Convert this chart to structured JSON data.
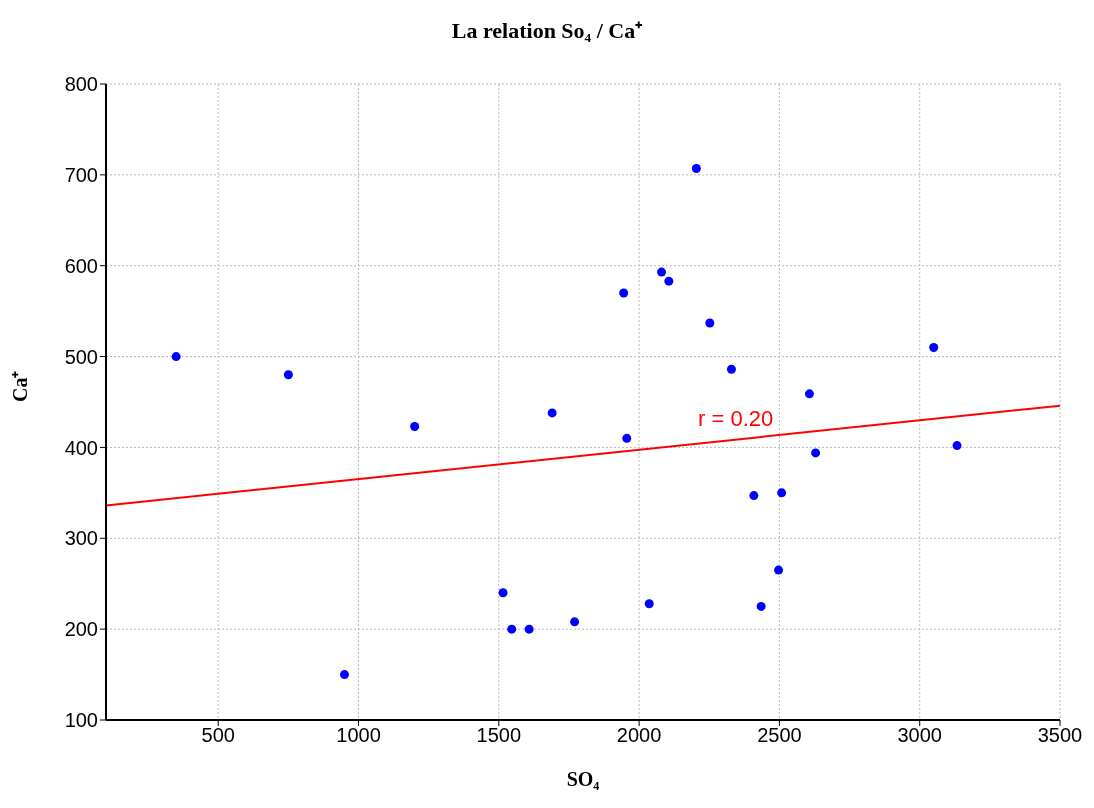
{
  "chart_data": {
    "type": "scatter",
    "title": "La relation So₄ / Ca⁺",
    "xlabel": "SO₄",
    "ylabel": "Ca⁺",
    "xlim": [
      100,
      3500
    ],
    "xticks": [
      500,
      1000,
      1500,
      2000,
      2500,
      3000,
      3500
    ],
    "ylim": [
      100,
      800
    ],
    "yticks": [
      100,
      200,
      300,
      400,
      500,
      600,
      700,
      800
    ],
    "grid": true,
    "marker": "circle",
    "series": [
      {
        "color": "#0000ff",
        "x": [
          350,
          750,
          950,
          1200,
          1515,
          1546,
          1608,
          1690,
          1770,
          1945,
          1956,
          2036,
          2080,
          2106,
          2204,
          2252,
          2329,
          2409,
          2435,
          2497,
          2508,
          2607,
          2629,
          3050,
          3133
        ],
        "values": [
          500,
          480,
          150,
          423,
          240,
          200,
          200,
          438,
          208,
          570,
          410,
          228,
          593,
          583,
          707,
          537,
          486,
          347,
          225,
          265,
          350,
          459,
          394,
          510,
          402
        ]
      },
      {
        "type": "line",
        "color": "#ff0000",
        "marker": "none",
        "x": [
          100,
          3500
        ],
        "values": [
          336,
          446
        ]
      }
    ],
    "annotations": [
      "r = 0.20"
    ]
  }
}
